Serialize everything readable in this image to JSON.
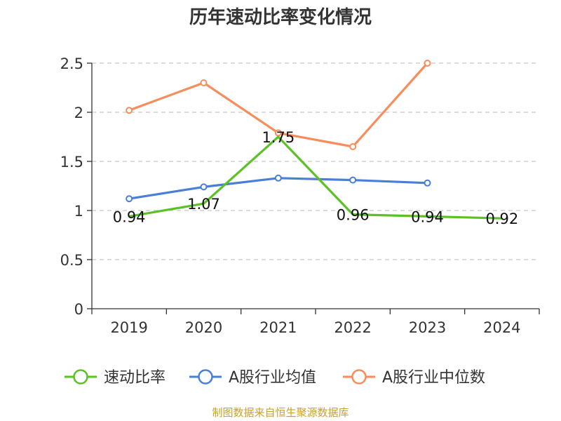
{
  "chart_data": {
    "type": "line",
    "title": "历年速动比率变化情况",
    "categories": [
      "2019",
      "2020",
      "2021",
      "2022",
      "2023",
      "2024"
    ],
    "ylim": [
      0,
      2.5
    ],
    "yticks": [
      "0",
      "0.5",
      "1",
      "1.5",
      "2",
      "2.5"
    ],
    "grid": true,
    "legend_position": "bottom",
    "series": [
      {
        "name": "速动比率",
        "color": "#5cc125",
        "values": [
          0.94,
          1.07,
          1.75,
          0.96,
          0.94,
          0.92
        ],
        "labels": [
          "0.94",
          "1.07",
          "1.75",
          "0.96",
          "0.94",
          "0.92"
        ]
      },
      {
        "name": "A股行业均值",
        "color": "#4a7fd8",
        "values": [
          1.12,
          1.24,
          1.33,
          1.31,
          1.28,
          null
        ]
      },
      {
        "name": "A股行业中位数",
        "color": "#f78d5c",
        "values": [
          2.02,
          2.3,
          1.79,
          1.65,
          2.5,
          null
        ]
      }
    ]
  },
  "footer": "制图数据来自恒生聚源数据库"
}
